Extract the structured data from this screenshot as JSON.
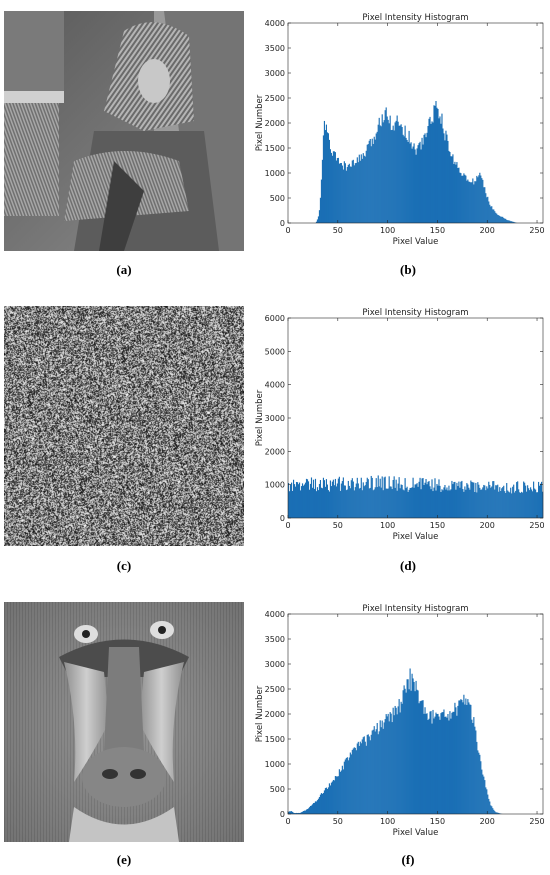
{
  "panels": [
    {
      "id": "a",
      "image": "portrait-photo",
      "caption": "(a)"
    },
    {
      "id": "c",
      "image": "noise-encrypted-image",
      "caption": "(c)"
    },
    {
      "id": "e",
      "image": "mandrill-photo",
      "caption": "(e)"
    }
  ],
  "chart_captions": [
    "(b)",
    "(d)",
    "(f)"
  ],
  "colors": {
    "bar": "#1a6fb5"
  },
  "chart_data": [
    {
      "type": "bar",
      "title": "Pixel Intensity Histogram",
      "xlabel": "Pixel Value",
      "ylabel": "Pixel Number",
      "xlim": [
        0,
        256
      ],
      "ylim": [
        0,
        4000
      ],
      "xticks": [
        0,
        50,
        100,
        150,
        200,
        250
      ],
      "yticks": [
        0,
        500,
        1000,
        1500,
        2000,
        2500,
        3000,
        3500,
        4000
      ],
      "profile": [
        [
          0,
          0
        ],
        [
          28,
          0
        ],
        [
          31,
          150
        ],
        [
          33,
          600
        ],
        [
          35,
          1600
        ],
        [
          37,
          2000
        ],
        [
          39,
          1900
        ],
        [
          42,
          1500
        ],
        [
          48,
          1300
        ],
        [
          55,
          1150
        ],
        [
          62,
          1120
        ],
        [
          70,
          1250
        ],
        [
          78,
          1400
        ],
        [
          85,
          1650
        ],
        [
          92,
          2000
        ],
        [
          98,
          2300
        ],
        [
          101,
          2200
        ],
        [
          104,
          1950
        ],
        [
          110,
          2000
        ],
        [
          116,
          1900
        ],
        [
          122,
          1700
        ],
        [
          128,
          1450
        ],
        [
          135,
          1600
        ],
        [
          142,
          2000
        ],
        [
          148,
          2300
        ],
        [
          152,
          2250
        ],
        [
          156,
          1900
        ],
        [
          162,
          1450
        ],
        [
          168,
          1200
        ],
        [
          175,
          1000
        ],
        [
          182,
          800
        ],
        [
          188,
          850
        ],
        [
          193,
          1000
        ],
        [
          197,
          700
        ],
        [
          203,
          350
        ],
        [
          210,
          180
        ],
        [
          220,
          60
        ],
        [
          230,
          0
        ],
        [
          256,
          0
        ]
      ]
    },
    {
      "type": "bar",
      "title": "Pixel Intensity Histogram",
      "xlabel": "Pixel Value",
      "ylabel": "Pixel Number",
      "xlim": [
        0,
        256
      ],
      "ylim": [
        0,
        6000
      ],
      "xticks": [
        0,
        50,
        100,
        150,
        200,
        250
      ],
      "yticks": [
        0,
        1000,
        2000,
        3000,
        4000,
        5000,
        6000
      ],
      "profile": [
        [
          0,
          1000
        ],
        [
          15,
          1050
        ],
        [
          40,
          1000
        ],
        [
          70,
          1050
        ],
        [
          95,
          1050
        ],
        [
          120,
          1000
        ],
        [
          150,
          980
        ],
        [
          180,
          930
        ],
        [
          200,
          950
        ],
        [
          220,
          920
        ],
        [
          240,
          900
        ],
        [
          256,
          900
        ]
      ]
    },
    {
      "type": "bar",
      "title": "Pixel Intensity Histogram",
      "xlabel": "Pixel Value",
      "ylabel": "Pixel Number",
      "xlim": [
        0,
        256
      ],
      "ylim": [
        0,
        4000
      ],
      "xticks": [
        0,
        50,
        100,
        150,
        200,
        250
      ],
      "yticks": [
        0,
        500,
        1000,
        1500,
        2000,
        2500,
        3000,
        3500,
        4000
      ],
      "profile": [
        [
          0,
          40
        ],
        [
          3,
          60
        ],
        [
          6,
          20
        ],
        [
          12,
          20
        ],
        [
          20,
          100
        ],
        [
          30,
          300
        ],
        [
          40,
          550
        ],
        [
          50,
          800
        ],
        [
          60,
          1100
        ],
        [
          70,
          1350
        ],
        [
          80,
          1500
        ],
        [
          90,
          1700
        ],
        [
          100,
          1900
        ],
        [
          108,
          2050
        ],
        [
          113,
          2200
        ],
        [
          118,
          2600
        ],
        [
          122,
          2720
        ],
        [
          126,
          2600
        ],
        [
          132,
          2300
        ],
        [
          140,
          2050
        ],
        [
          148,
          1900
        ],
        [
          158,
          1950
        ],
        [
          168,
          2100
        ],
        [
          176,
          2250
        ],
        [
          181,
          2200
        ],
        [
          186,
          1900
        ],
        [
          191,
          1300
        ],
        [
          197,
          700
        ],
        [
          203,
          200
        ],
        [
          208,
          40
        ],
        [
          215,
          0
        ],
        [
          256,
          0
        ]
      ]
    }
  ]
}
